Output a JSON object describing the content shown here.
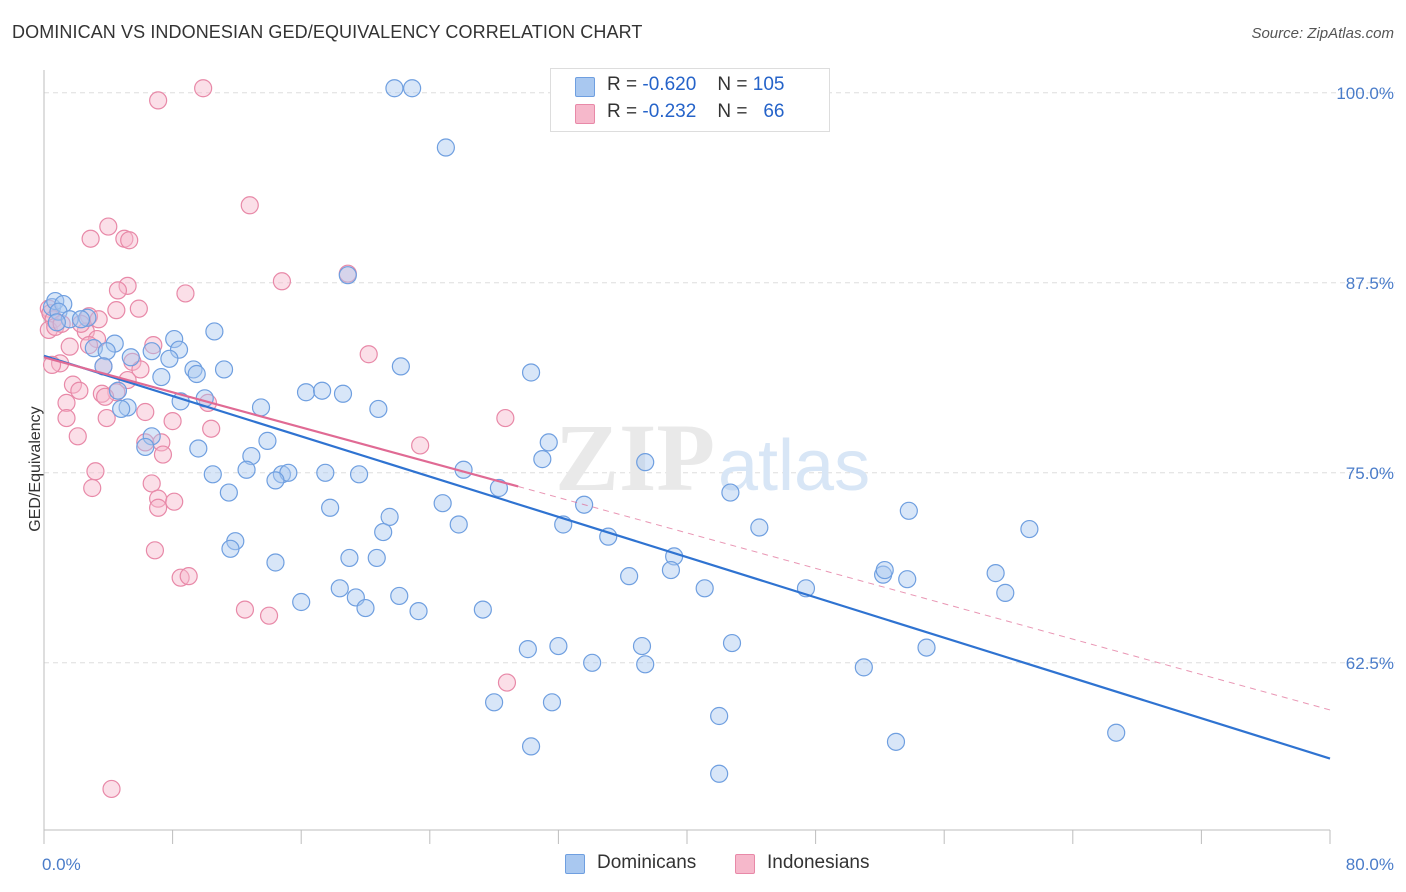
{
  "header": {
    "title": "DOMINICAN VS INDONESIAN GED/EQUIVALENCY CORRELATION CHART",
    "source": "Source: ZipAtlas.com"
  },
  "watermark": {
    "zip": "ZIP",
    "atlas": "atlas"
  },
  "legend_top": {
    "rows": [
      {
        "r_label": "R =",
        "r_value": "-0.620",
        "n_label": "N =",
        "n_value": "105",
        "color": "#a9c8f0",
        "border": "#6f9fe0"
      },
      {
        "r_label": "R =",
        "r_value": "-0.232",
        "n_label": "N =",
        "n_value": "66",
        "color": "#f6b8cb",
        "border": "#e889a8"
      }
    ]
  },
  "legend_bottom": {
    "items": [
      {
        "label": "Dominicans",
        "color": "#a9c8f0",
        "border": "#6f9fe0"
      },
      {
        "label": "Indonesians",
        "color": "#f6b8cb",
        "border": "#e889a8"
      }
    ]
  },
  "colors": {
    "blue_line": "#2f73d1",
    "pink_line": "#e06a94",
    "blue_fill": "#a9c8f0",
    "blue_stroke": "#6f9fe0",
    "pink_fill": "#f6b8cb",
    "pink_stroke": "#e889a8",
    "tick_text": "#4a7cc9",
    "grid": "#dedede"
  },
  "chart_data": {
    "type": "scatter",
    "title": "DOMINICAN VS INDONESIAN GED/EQUIVALENCY CORRELATION CHART",
    "xlabel": "",
    "ylabel": "GED/Equivalency",
    "xlim": [
      0,
      80
    ],
    "ylim": [
      51.5,
      101.5
    ],
    "x_tick_labels": [
      "0.0%",
      "80.0%"
    ],
    "y_ticks": [
      62.5,
      75.0,
      87.5,
      100.0
    ],
    "y_tick_labels": [
      "62.5%",
      "75.0%",
      "87.5%",
      "100.0%"
    ],
    "grid": true,
    "legend_position": "top-center",
    "series": [
      {
        "name": "Dominicans",
        "r": -0.62,
        "n": 105,
        "trend": {
          "x": [
            0,
            80
          ],
          "y": [
            82.7,
            56.2
          ]
        },
        "points": [
          [
            0.5,
            85.9
          ],
          [
            0.7,
            86.3
          ],
          [
            1.2,
            86.1
          ],
          [
            0.9,
            85.6
          ],
          [
            1.6,
            85.1
          ],
          [
            2.7,
            85.2
          ],
          [
            0.8,
            84.9
          ],
          [
            2.3,
            85.1
          ],
          [
            4.4,
            83.5
          ],
          [
            8.1,
            83.8
          ],
          [
            10.6,
            84.3
          ],
          [
            3.1,
            83.2
          ],
          [
            3.9,
            83.0
          ],
          [
            8.4,
            83.1
          ],
          [
            5.4,
            82.6
          ],
          [
            6.7,
            83.0
          ],
          [
            7.8,
            82.5
          ],
          [
            3.7,
            82.0
          ],
          [
            11.2,
            81.8
          ],
          [
            9.3,
            81.8
          ],
          [
            22.2,
            82.0
          ],
          [
            9.5,
            81.5
          ],
          [
            7.3,
            81.3
          ],
          [
            30.3,
            81.6
          ],
          [
            4.6,
            80.4
          ],
          [
            16.3,
            80.3
          ],
          [
            17.3,
            80.4
          ],
          [
            18.6,
            80.2
          ],
          [
            10.0,
            79.9
          ],
          [
            8.5,
            79.7
          ],
          [
            5.2,
            79.3
          ],
          [
            4.8,
            79.2
          ],
          [
            13.5,
            79.3
          ],
          [
            20.8,
            79.2
          ],
          [
            6.7,
            77.4
          ],
          [
            13.9,
            77.1
          ],
          [
            31.4,
            77.0
          ],
          [
            12.9,
            76.1
          ],
          [
            6.3,
            76.7
          ],
          [
            9.6,
            76.6
          ],
          [
            31.0,
            75.9
          ],
          [
            37.4,
            75.7
          ],
          [
            12.6,
            75.2
          ],
          [
            26.1,
            75.2
          ],
          [
            10.5,
            74.9
          ],
          [
            14.8,
            74.9
          ],
          [
            15.2,
            75.0
          ],
          [
            17.5,
            75.0
          ],
          [
            19.6,
            74.9
          ],
          [
            14.4,
            74.5
          ],
          [
            28.3,
            74.0
          ],
          [
            11.5,
            73.7
          ],
          [
            42.7,
            73.7
          ],
          [
            17.8,
            72.7
          ],
          [
            24.8,
            73.0
          ],
          [
            33.6,
            72.9
          ],
          [
            21.5,
            72.1
          ],
          [
            32.3,
            71.6
          ],
          [
            25.8,
            71.6
          ],
          [
            21.1,
            71.1
          ],
          [
            35.1,
            70.8
          ],
          [
            11.9,
            70.5
          ],
          [
            11.6,
            70.0
          ],
          [
            14.4,
            69.1
          ],
          [
            19.0,
            69.4
          ],
          [
            20.7,
            69.4
          ],
          [
            39.2,
            69.5
          ],
          [
            36.4,
            68.2
          ],
          [
            39.0,
            68.6
          ],
          [
            52.2,
            68.3
          ],
          [
            53.7,
            68.0
          ],
          [
            52.3,
            68.6
          ],
          [
            18.4,
            67.4
          ],
          [
            41.1,
            67.4
          ],
          [
            47.4,
            67.4
          ],
          [
            59.8,
            67.1
          ],
          [
            16.0,
            66.5
          ],
          [
            19.4,
            66.8
          ],
          [
            22.1,
            66.9
          ],
          [
            20.0,
            66.1
          ],
          [
            23.3,
            65.9
          ],
          [
            27.3,
            66.0
          ],
          [
            42.8,
            63.8
          ],
          [
            30.1,
            63.4
          ],
          [
            32.0,
            63.6
          ],
          [
            34.1,
            62.5
          ],
          [
            37.2,
            63.6
          ],
          [
            37.4,
            62.4
          ],
          [
            54.9,
            63.5
          ],
          [
            51.0,
            62.2
          ],
          [
            28.0,
            59.9
          ],
          [
            31.6,
            59.9
          ],
          [
            42.0,
            59.0
          ],
          [
            66.7,
            57.9
          ],
          [
            30.3,
            57.0
          ],
          [
            42.0,
            55.2
          ],
          [
            44.5,
            71.4
          ],
          [
            53.8,
            72.5
          ],
          [
            59.2,
            68.4
          ],
          [
            61.3,
            71.3
          ],
          [
            53.0,
            57.3
          ],
          [
            18.9,
            88.0
          ],
          [
            25.0,
            96.4
          ],
          [
            21.8,
            100.3
          ],
          [
            22.9,
            100.3
          ]
        ]
      },
      {
        "name": "Indonesians",
        "r": -0.232,
        "n": 66,
        "trend": {
          "x": [
            0,
            29.5
          ],
          "y": [
            82.6,
            74.1
          ]
        },
        "trend_extension": {
          "x": [
            29.5,
            80
          ],
          "y": [
            74.1,
            59.4
          ]
        },
        "points": [
          [
            7.1,
            99.5
          ],
          [
            9.9,
            100.3
          ],
          [
            12.8,
            92.6
          ],
          [
            4.0,
            91.2
          ],
          [
            2.9,
            90.4
          ],
          [
            5.0,
            90.4
          ],
          [
            5.3,
            90.3
          ],
          [
            18.9,
            88.1
          ],
          [
            14.8,
            87.6
          ],
          [
            5.2,
            87.3
          ],
          [
            4.6,
            87.0
          ],
          [
            8.8,
            86.8
          ],
          [
            5.9,
            85.8
          ],
          [
            4.5,
            85.7
          ],
          [
            0.3,
            85.8
          ],
          [
            0.4,
            85.5
          ],
          [
            0.6,
            85.1
          ],
          [
            2.8,
            85.3
          ],
          [
            3.4,
            85.1
          ],
          [
            0.3,
            84.4
          ],
          [
            0.7,
            84.6
          ],
          [
            2.6,
            84.3
          ],
          [
            3.3,
            83.8
          ],
          [
            1.6,
            83.3
          ],
          [
            2.8,
            83.4
          ],
          [
            6.8,
            83.4
          ],
          [
            20.2,
            82.8
          ],
          [
            5.5,
            82.3
          ],
          [
            1.0,
            82.2
          ],
          [
            0.5,
            82.1
          ],
          [
            6.0,
            81.8
          ],
          [
            1.8,
            80.8
          ],
          [
            2.2,
            80.4
          ],
          [
            4.5,
            80.3
          ],
          [
            3.6,
            80.2
          ],
          [
            3.8,
            80.0
          ],
          [
            1.4,
            79.6
          ],
          [
            10.2,
            79.6
          ],
          [
            6.3,
            79.0
          ],
          [
            3.9,
            78.6
          ],
          [
            1.4,
            78.6
          ],
          [
            28.7,
            78.6
          ],
          [
            8.0,
            78.4
          ],
          [
            10.4,
            77.9
          ],
          [
            2.1,
            77.4
          ],
          [
            6.3,
            77.0
          ],
          [
            7.3,
            77.0
          ],
          [
            23.4,
            76.8
          ],
          [
            7.4,
            76.2
          ],
          [
            3.2,
            75.1
          ],
          [
            6.7,
            74.3
          ],
          [
            3.0,
            74.0
          ],
          [
            7.1,
            73.3
          ],
          [
            8.1,
            73.1
          ],
          [
            7.1,
            72.7
          ],
          [
            6.9,
            69.9
          ],
          [
            8.5,
            68.1
          ],
          [
            9.0,
            68.2
          ],
          [
            12.5,
            66.0
          ],
          [
            14.0,
            65.6
          ],
          [
            28.8,
            61.2
          ],
          [
            4.2,
            54.2
          ],
          [
            2.3,
            84.8
          ],
          [
            3.7,
            82.0
          ],
          [
            1.1,
            84.8
          ],
          [
            5.2,
            81.1
          ]
        ]
      }
    ]
  }
}
